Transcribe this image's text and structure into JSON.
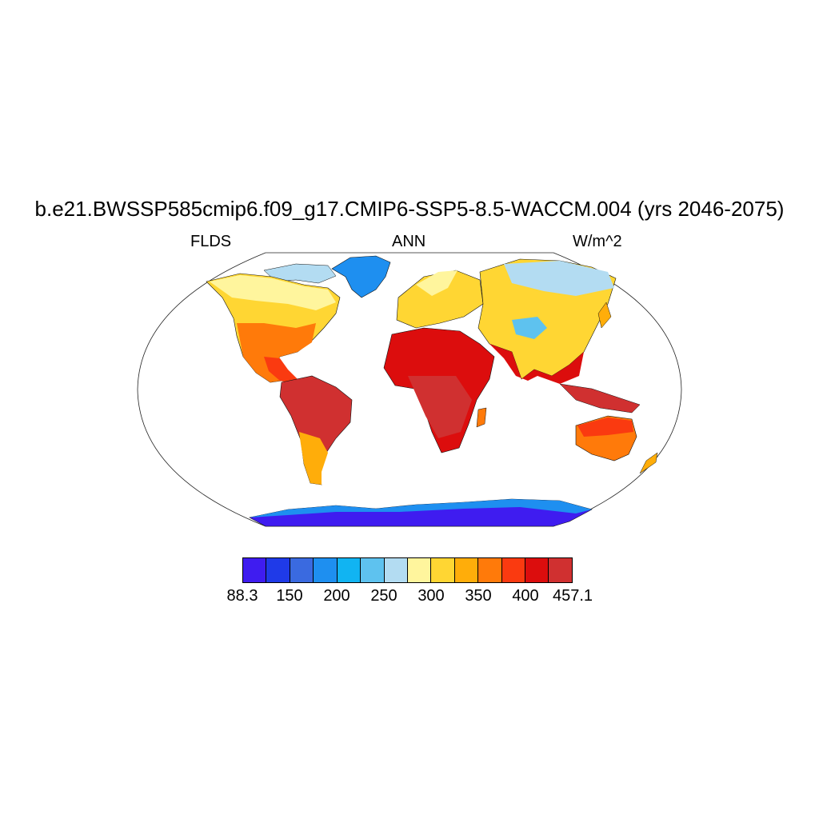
{
  "title": "b.e21.BWSSP585cmip6.f09_g17.CMIP6-SSP5-8.5-WACCM.004 (yrs 2046-2075)",
  "left_string": "FLDS",
  "center_string": "ANN",
  "right_string": "W/m^2",
  "colorbar": {
    "colors": [
      "#3f1cf0",
      "#1f3ae8",
      "#3a6ae0",
      "#1e8ff0",
      "#11b4f2",
      "#5ec2ef",
      "#b3dcf2",
      "#fff59d",
      "#ffd633",
      "#ffad0a",
      "#ff7a0a",
      "#fa3a10",
      "#dc0d0d",
      "#d03030"
    ],
    "labels": [
      "88.3",
      "150",
      "200",
      "250",
      "300",
      "350",
      "400",
      "457.1"
    ],
    "label_boundary_index": [
      0,
      2,
      4,
      6,
      8,
      10,
      12,
      14
    ]
  },
  "chart_data": {
    "type": "heatmap",
    "variable": "FLDS",
    "season": "ANN",
    "units": "W/m^2",
    "projection": "Robinson",
    "value_range": [
      88.3,
      457.1
    ],
    "colorbar_levels": [
      88.3,
      150,
      200,
      250,
      300,
      350,
      400,
      457.1
    ]
  }
}
